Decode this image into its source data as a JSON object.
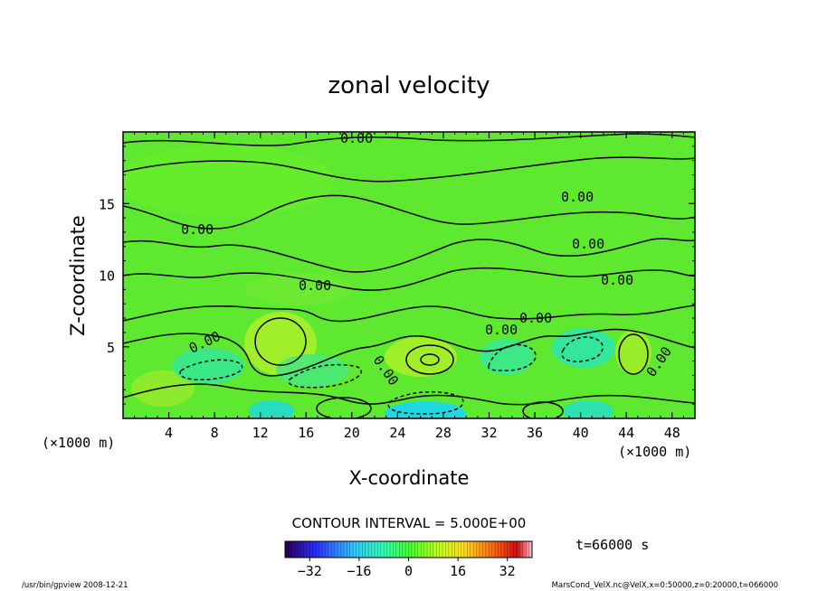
{
  "chart_data": {
    "type": "heatmap",
    "title": "zonal velocity",
    "xlabel": "X-coordinate",
    "ylabel": "Z-coordinate",
    "x_unit": "(×1000 m)",
    "y_unit": "(×1000 m)",
    "xlim": [
      0,
      50
    ],
    "ylim": [
      0,
      20
    ],
    "x_ticks": [
      "4",
      "8",
      "12",
      "16",
      "20",
      "24",
      "28",
      "32",
      "36",
      "40",
      "44",
      "48"
    ],
    "y_ticks": [
      "5",
      "10",
      "15"
    ],
    "x_tick_values": [
      4,
      8,
      12,
      16,
      20,
      24,
      28,
      32,
      36,
      40,
      44,
      48
    ],
    "y_tick_values": [
      5,
      10,
      15
    ],
    "contour_interval": "CONTOUR INTERVAL = 5.000E+00",
    "contour_labels": [
      "0.00",
      "0.00",
      "0.00",
      "0.00",
      "0.00",
      "0.00",
      "0.00",
      "0.00",
      "0.00",
      "0.00",
      "0.00"
    ],
    "time": "t=66000 s",
    "colorbar": {
      "ticks": [
        "−32",
        "−16",
        "0",
        "16",
        "32"
      ],
      "tick_values": [
        -32,
        -16,
        0,
        16,
        32
      ],
      "range": [
        -40,
        40
      ]
    }
  },
  "footer": {
    "left": "/usr/bin/gpview  2008-12-21",
    "right": "MarsCond_VelX.nc@VelX,x=0:50000,z=0:20000,t=066000"
  }
}
